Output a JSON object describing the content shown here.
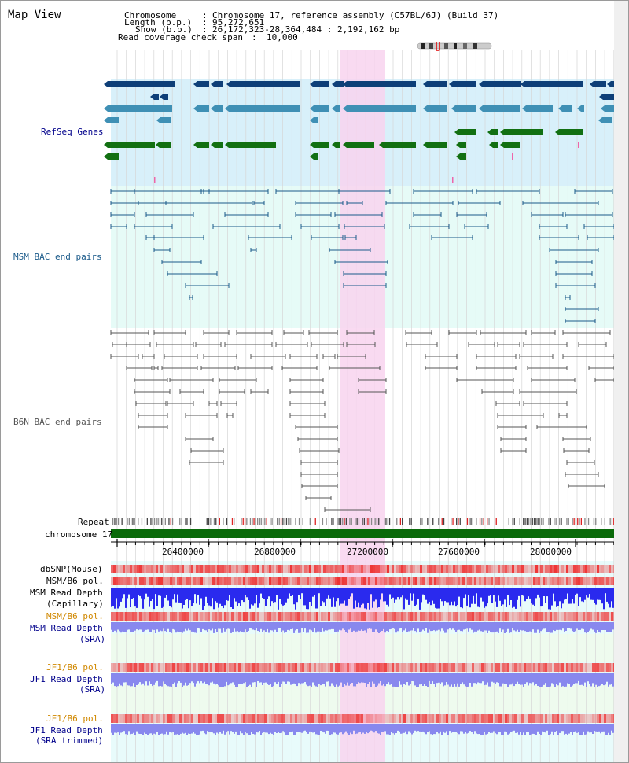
{
  "view": {
    "title": "Map View"
  },
  "info": {
    "chromosome_label": "Chromosome",
    "chromosome_value": "Chromosome 17, reference assembly (C57BL/6J) (Build 37)",
    "length_label": "Length (b.p.)",
    "length_value": "95,272,651",
    "show_label": "Show (b.p.)",
    "show_value": "26,172,323-28,364,484 : 2,192,162 bp",
    "coverage_label": "Read coverage check span",
    "coverage_value": "10,000",
    "sep": ":"
  },
  "tracks": {
    "refseq": "RefSeq Genes",
    "msm_bac": "MSM BAC end pairs",
    "b6n_bac": "B6N BAC end pairs",
    "repeat": "Repeat",
    "chromosome": "chromosome 17",
    "dbsnp": "dbSNP(Mouse)",
    "msm_b6_pol_1": "MSM/B6 pol.",
    "msm_read_depth_cap_1": "MSM Read Depth",
    "msm_read_depth_cap_2": "(Capillary)",
    "msm_b6_pol_2": "MSM/B6 pol.",
    "msm_read_depth_sra_1": "MSM Read Depth",
    "msm_read_depth_sra_2": "(SRA)",
    "jf1_b6_pol_1": "JF1/B6 pol.",
    "jf1_read_depth_sra_1": "JF1 Read Depth",
    "jf1_read_depth_sra_2": "(SRA)",
    "jf1_b6_pol_2": "JF1/B6 pol.",
    "jf1_read_depth_trim_1": "JF1 Read Depth",
    "jf1_read_depth_trim_2": "(SRA trimmed)"
  },
  "axis": {
    "ticks": [
      "26400000",
      "26800000",
      "27200000",
      "27600000",
      "28000000"
    ]
  },
  "colors": {
    "refseq_bg": "#d8f0fa",
    "bac_bg": "#e6fbf7",
    "highlight": "#f8d4ee",
    "dark_blue_gene": "#0e3f78",
    "mid_blue_gene": "#3f90b5",
    "green_gene": "#127012",
    "msm_bac_line": "#1a5a8a",
    "b6n_bac_line": "#555555",
    "chromosome_bar": "#0a6a0a",
    "dbsnp_red": "#ee2222",
    "depth_blue": "#2a2aee",
    "depth_light": "#8888ee",
    "label_navy": "#00008b",
    "label_orange": "#d08800"
  }
}
